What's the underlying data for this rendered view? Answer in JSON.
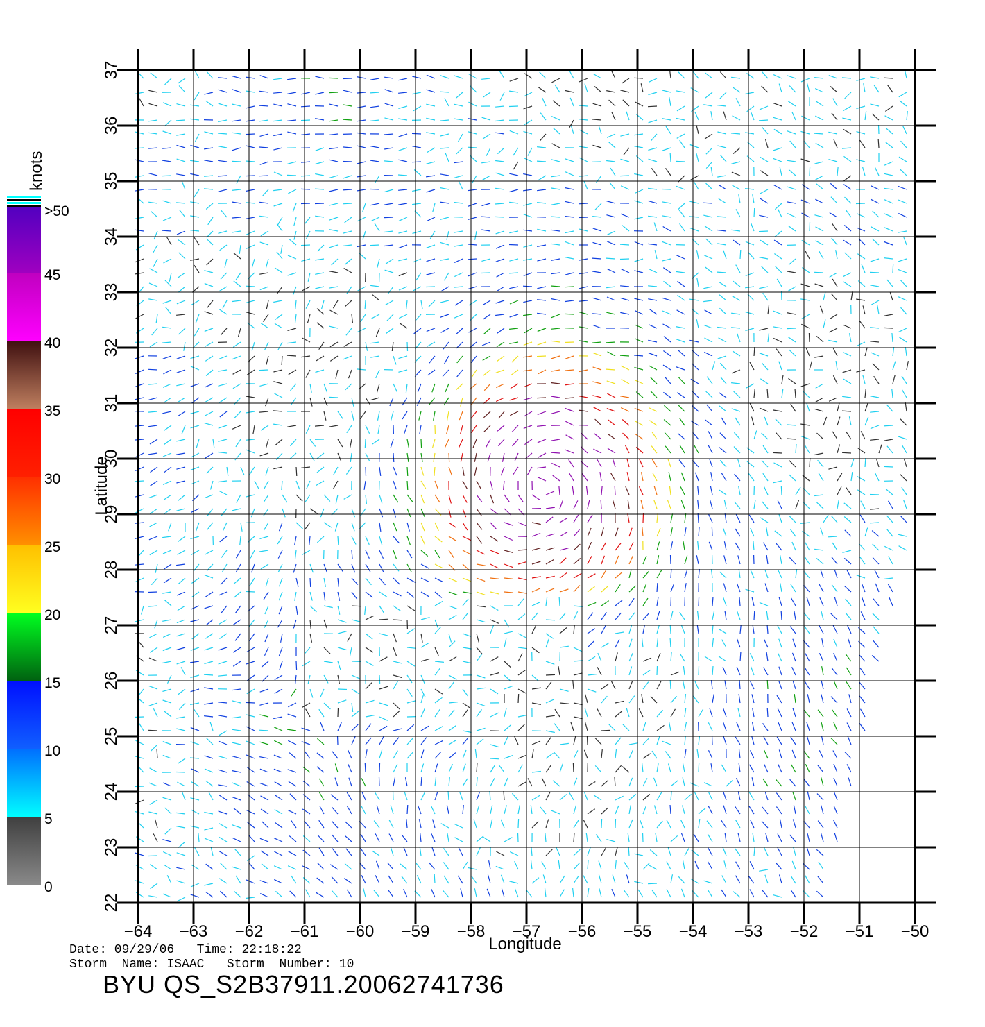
{
  "map": {
    "lon_range": [
      -64,
      -50
    ],
    "lat_range": [
      22,
      37
    ],
    "lon_ticks": [
      "−64",
      "−63",
      "−62",
      "−61",
      "−60",
      "−59",
      "−58",
      "−57",
      "−56",
      "−55",
      "−54",
      "−53",
      "−52",
      "−51",
      "−50"
    ],
    "lat_ticks": [
      "22",
      "23",
      "24",
      "25",
      "26",
      "27",
      "28",
      "29",
      "30",
      "31",
      "32",
      "33",
      "34",
      "35",
      "36",
      "37"
    ],
    "xlabel": "Longitude",
    "ylabel": "Latitude",
    "storm_center": {
      "lon": -56.7,
      "lat": 29.5
    },
    "gridlines": true
  },
  "colorbar": {
    "title": "knots",
    "labels": [
      "0",
      "5",
      "10",
      "15",
      "20",
      "25",
      "30",
      "35",
      "40",
      "45",
      ">50"
    ],
    "bands": [
      {
        "from": 0,
        "to": 5,
        "top": "#404040",
        "bottom": "#8a8a8a"
      },
      {
        "from": 5,
        "to": 10,
        "top": "#0070ff",
        "bottom": "#00ffff"
      },
      {
        "from": 10,
        "to": 15,
        "top": "#0010ff",
        "bottom": "#1060ff"
      },
      {
        "from": 15,
        "to": 20,
        "top": "#00ff20",
        "bottom": "#006010"
      },
      {
        "from": 20,
        "to": 25,
        "top": "#ffc000",
        "bottom": "#ffff20"
      },
      {
        "from": 25,
        "to": 30,
        "top": "#ff3000",
        "bottom": "#ff9000"
      },
      {
        "from": 30,
        "to": 35,
        "top": "#ff0000",
        "bottom": "#ff2000"
      },
      {
        "from": 35,
        "to": 40,
        "top": "#401010",
        "bottom": "#c08060"
      },
      {
        "from": 40,
        "to": 45,
        "top": "#c000c0",
        "bottom": "#ff00ff"
      },
      {
        "from": 45,
        "to": 50,
        "top": "#5000c0",
        "bottom": "#a000c0"
      }
    ]
  },
  "info": {
    "date_line": "Date: 09/29/06   Time: 22:18:22",
    "storm_line": "Storm  Name: ISAAC   Storm  Number: 10",
    "title": "BYU  QS_S2B37911.20062741736"
  }
}
